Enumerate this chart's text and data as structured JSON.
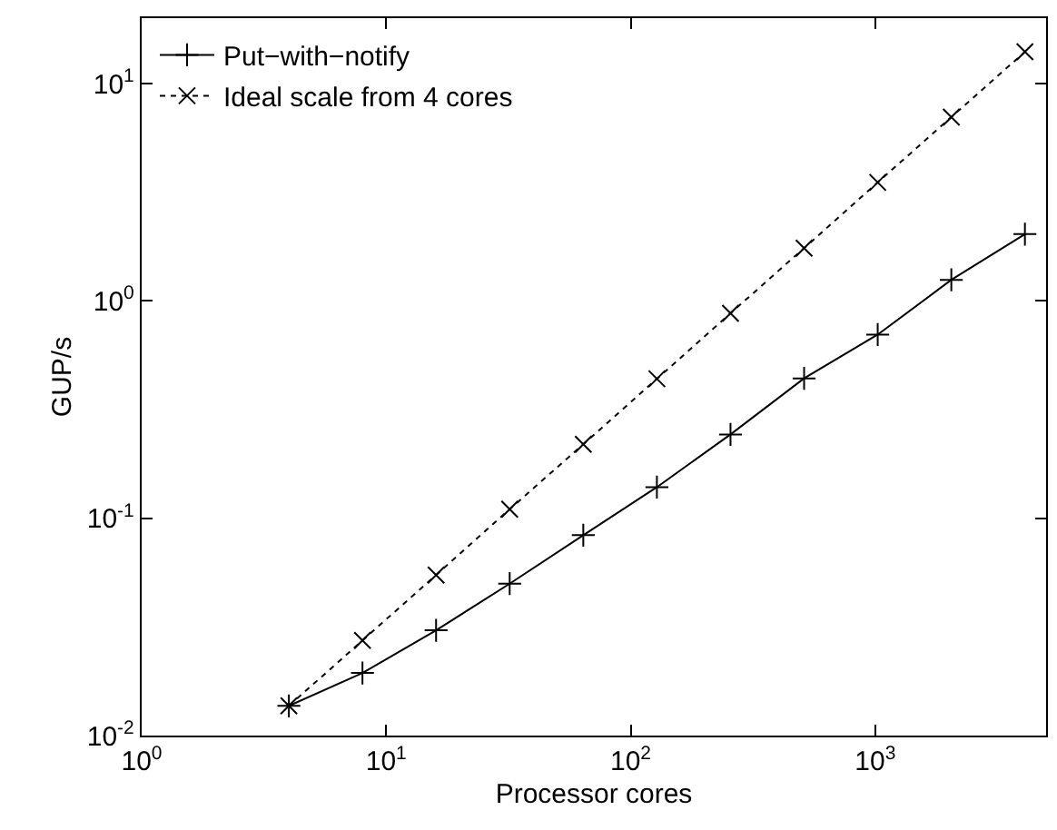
{
  "chart_data": {
    "type": "line",
    "xlabel": "Processor cores",
    "ylabel": "GUP/s",
    "log": "xy",
    "grid": false,
    "legend": "top left",
    "xlim": [
      1,
      5000
    ],
    "xticks": [
      {
        "value": 1,
        "label": "10$^{0}$"
      },
      {
        "value": 10,
        "label": "10$^{1}$"
      },
      {
        "value": 100,
        "label": "10$^{2}$"
      },
      {
        "value": 1000,
        "label": "10$^{3}$"
      }
    ],
    "ylim": [
      0.01,
      20
    ],
    "yticks": [
      {
        "value": 0.01,
        "label": "10$^{-2}$"
      },
      {
        "value": 0.1,
        "label": "10$^{-1}$"
      },
      {
        "value": 1,
        "label": "10$^{0}$"
      },
      {
        "value": 10,
        "label": "10$^{1}$"
      }
    ],
    "x": [
      4,
      8,
      16,
      32,
      64,
      128,
      256,
      512,
      1024,
      2048,
      4096
    ],
    "series": [
      {
        "name": "Put−with−notify",
        "color": "#000000",
        "marker": "cross",
        "line_style": "solid",
        "values": [
          0.0137,
          0.0194,
          0.0305,
          0.05,
          0.0836,
          0.139,
          0.243,
          0.44,
          0.7,
          1.25,
          2.03
        ]
      },
      {
        "name": "Ideal scale from 4 cores",
        "color": "#000000",
        "marker": "x",
        "line_style": "dotted",
        "values": [
          0.0137,
          0.0274,
          0.0548,
          0.11,
          0.219,
          0.438,
          0.877,
          1.75,
          3.51,
          7.01,
          14.0
        ]
      }
    ]
  }
}
